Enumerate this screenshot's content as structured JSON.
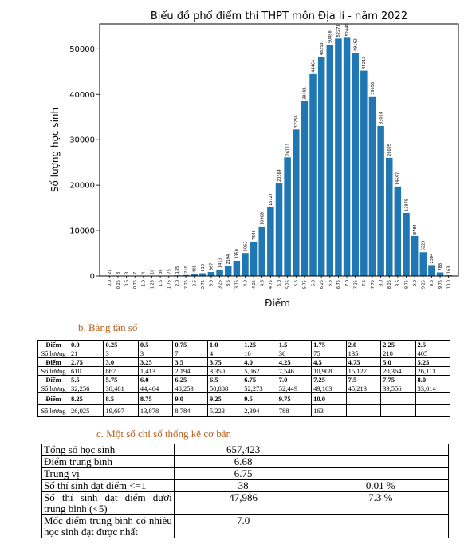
{
  "chart_data": {
    "type": "bar",
    "title": "Biểu đồ phổ điểm thi THPT môn Địa lí - năm 2022",
    "xlabel": "Điểm",
    "ylabel": "Số lượng học sinh",
    "ylim": [
      0,
      55500
    ],
    "yticks": [
      0,
      10000,
      20000,
      30000,
      40000,
      50000
    ],
    "ytick_labels": [
      "0",
      "10000",
      "20000",
      "30000",
      "40000",
      "50000"
    ],
    "categories": [
      "0.0",
      "0.25",
      "0.5",
      "0.75",
      "1.0",
      "1.25",
      "1.5",
      "1.75",
      "2.0",
      "2.25",
      "2.5",
      "2.75",
      "3.0",
      "3.25",
      "3.5",
      "3.75",
      "4.0",
      "4.25",
      "4.5",
      "4.75",
      "5.0",
      "5.25",
      "5.5",
      "5.75",
      "6.0",
      "6.25",
      "6.5",
      "6.75",
      "7.0",
      "7.25",
      "7.5",
      "7.75",
      "8.0",
      "8.25",
      "8.5",
      "8.75",
      "9.0",
      "9.25",
      "9.5",
      "9.75",
      "10.0"
    ],
    "values": [
      21,
      3,
      3,
      7,
      4,
      10,
      36,
      75,
      135,
      210,
      405,
      610,
      867,
      1413,
      2194,
      3350,
      5062,
      7546,
      10908,
      15127,
      20364,
      26111,
      32256,
      38481,
      44464,
      48253,
      50888,
      52273,
      52449,
      49163,
      45213,
      39556,
      33014,
      26025,
      19697,
      13878,
      8784,
      5223,
      2394,
      788,
      163
    ],
    "value_labels": [
      "21",
      "3",
      "3",
      "7",
      "4",
      "10",
      "36",
      "75",
      "135",
      "210",
      "405",
      "610",
      "867",
      "1413",
      "2194",
      "3350",
      "5062",
      "7546",
      "10908",
      "15127",
      "20364",
      "26111",
      "32256",
      "38481",
      "44464",
      "48253",
      "50888",
      "52273",
      "52449",
      "49163",
      "45213",
      "39556",
      "33014",
      "26025",
      "19697",
      "13878",
      "8784",
      "5223",
      "2394",
      "788",
      "163"
    ],
    "bar_color": "#1f77b4",
    "grid": false,
    "legend": "none"
  },
  "freq_section": {
    "title": "b.   Bảng tần số",
    "rows": [
      {
        "label": "Điểm",
        "cells": [
          "0.0",
          "0.25",
          "0.5",
          "0.75",
          "1.0",
          "1.25",
          "1.5",
          "1.75",
          "2.0",
          "2.25",
          "2.5"
        ]
      },
      {
        "label": "Số lượng",
        "cells": [
          "21",
          "3",
          "3",
          "7",
          "4",
          "10",
          "36",
          "75",
          "135",
          "210",
          "405"
        ]
      },
      {
        "label": "Điểm",
        "cells": [
          "2.75",
          "3.0",
          "3.25",
          "3.5",
          "3.75",
          "4.0",
          "4.25",
          "4.5",
          "4.75",
          "5.0",
          "5.25"
        ]
      },
      {
        "label": "Số lượng",
        "cells": [
          "610",
          "867",
          "1,413",
          "2,194",
          "3,350",
          "5,062",
          "7,546",
          "10,908",
          "15,127",
          "20,364",
          "26,111"
        ]
      },
      {
        "label": "Điểm",
        "cells": [
          "5.5",
          "5.75",
          "6.0",
          "6.25",
          "6.5",
          "6.75",
          "7.0",
          "7.25",
          "7.5",
          "7.75",
          "8.0"
        ]
      },
      {
        "label": "Số lượng",
        "cells": [
          "32,256",
          "38,481",
          "44,464",
          "48,253",
          "50,888",
          "52,273",
          "52,449",
          "49,163",
          "45,213",
          "39,556",
          "33,014"
        ]
      },
      {
        "label": "Điểm",
        "cells": [
          "8.25",
          "8.5",
          "8.75",
          "9.0",
          "9.25",
          "9.5",
          "9.75",
          "10.0",
          "",
          "",
          ""
        ]
      },
      {
        "label": "Số lượng",
        "cells": [
          "26,025",
          "19,697",
          "13,878",
          "8,784",
          "5,223",
          "2,394",
          "788",
          "163",
          "",
          "",
          ""
        ]
      }
    ]
  },
  "stats_section": {
    "title": "c.   Một số chỉ số thống kê cơ bản",
    "rows": [
      {
        "label": "Tổng số học sinh",
        "value": "657,423",
        "percent": ""
      },
      {
        "label": "Điểm trung bình",
        "value": "6.68",
        "percent": ""
      },
      {
        "label": "Trung vị",
        "value": "6.75",
        "percent": ""
      },
      {
        "label": "Số thí sinh đạt điểm <=1",
        "value": "38",
        "percent": "0.01 %"
      },
      {
        "label": "Số thí sinh đạt điểm dưới trung bình (<5)",
        "value": "47,986",
        "percent": "7.3 %"
      },
      {
        "label": "Mốc điểm trung bình có nhiều học sinh đạt được nhất",
        "value": "7.0",
        "percent": ""
      }
    ]
  }
}
